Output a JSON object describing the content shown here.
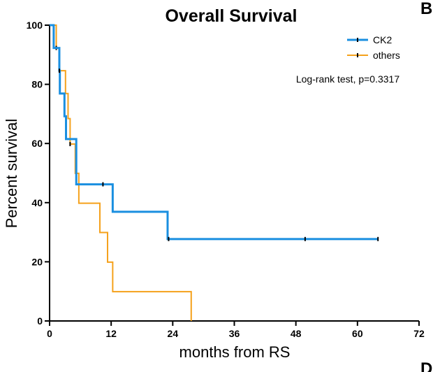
{
  "chart_data": {
    "type": "line",
    "subtype": "kaplan-meier-step",
    "title": "Overall Survival",
    "xlabel": "months from RS",
    "ylabel": "Percent survival",
    "xlim": [
      0,
      72
    ],
    "ylim": [
      0,
      100
    ],
    "xticks": [
      0,
      12,
      24,
      36,
      48,
      60,
      72
    ],
    "yticks": [
      0,
      20,
      40,
      60,
      80,
      100
    ],
    "annotation": "Log-rank test, p=0.3317",
    "legend_position": "top-right",
    "grid": false,
    "series": [
      {
        "name": "CK2",
        "color": "#1a8fe0",
        "steps": [
          [
            0,
            100
          ],
          [
            0.8,
            92.3
          ],
          [
            1.9,
            84.6
          ],
          [
            2,
            76.9
          ],
          [
            2.9,
            69.2
          ],
          [
            3.2,
            61.5
          ],
          [
            5.2,
            46.2
          ],
          [
            12.3,
            36.9
          ],
          [
            23,
            27.7
          ],
          [
            64,
            27.7
          ]
        ],
        "censored": [
          [
            1.9,
            84.6
          ],
          [
            10.4,
            46.2
          ],
          [
            23.2,
            27.7
          ],
          [
            49.8,
            27.7
          ],
          [
            64,
            27.7
          ]
        ]
      },
      {
        "name": "others",
        "color": "#f5a11b",
        "steps": [
          [
            0,
            100
          ],
          [
            1.3,
            92.3
          ],
          [
            1.9,
            84.6
          ],
          [
            3.1,
            76.9
          ],
          [
            3.6,
            68.4
          ],
          [
            4,
            59.8
          ],
          [
            5,
            49.9
          ],
          [
            5.7,
            39.8
          ],
          [
            9.8,
            29.9
          ],
          [
            11.3,
            19.9
          ],
          [
            12.3,
            9.9
          ],
          [
            27.6,
            0
          ]
        ],
        "censored": [
          [
            1.3,
            92.3
          ],
          [
            4,
            59.8
          ]
        ]
      }
    ]
  },
  "panel_letters": [
    "B",
    "D"
  ]
}
